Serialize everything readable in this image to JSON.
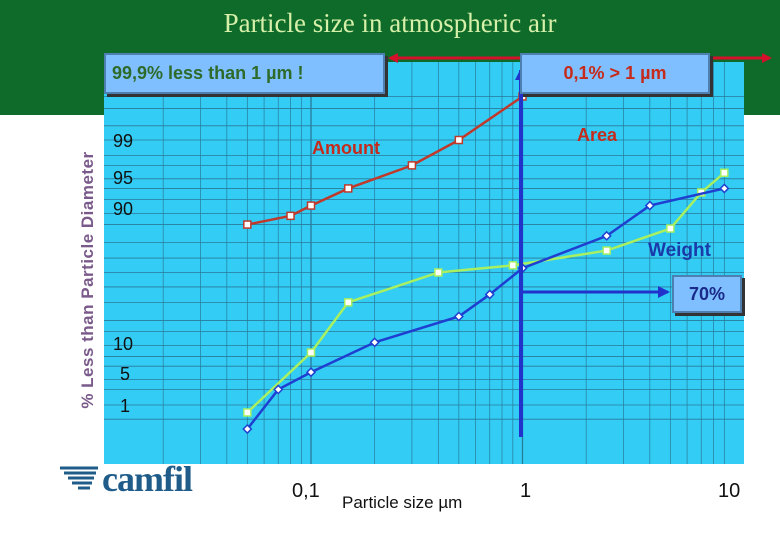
{
  "page": {
    "title": "Particle size in atmospheric air",
    "logo_text": "camfil"
  },
  "callouts": {
    "fine_share": "99,9% less than 1 µm !",
    "coarse_share": "0,1% > 1 µm",
    "weight_mark": "70%"
  },
  "chart_data": {
    "type": "line",
    "xlabel": "Particle size µm",
    "ylabel": "% Less than Particle Diameter",
    "x_scale": "log",
    "xlim": [
      0.03,
      10
    ],
    "x_ticks": [
      "0,1",
      "1",
      "10"
    ],
    "y_ticks": [
      "99",
      "95",
      "90",
      "10",
      "5",
      "1"
    ],
    "grid": true,
    "colors": {
      "plot_bg": "#33ccf5",
      "grid": "#2a7a9a",
      "amount": "#c0392b",
      "area": "#a8f060",
      "weight": "#1f3fd0",
      "divider": "#2233cc",
      "range_arrow": "#d4102a"
    },
    "series": [
      {
        "name": "Amount",
        "color_key": "amount",
        "marker": "square",
        "x": [
          0.05,
          0.08,
          0.1,
          0.15,
          0.3,
          0.5,
          1.0
        ],
        "y": [
          80,
          84,
          88,
          93,
          97,
          99,
          99.9
        ]
      },
      {
        "name": "Area",
        "color_key": "area",
        "marker": "square",
        "x": [
          0.05,
          0.1,
          0.15,
          0.4,
          0.9,
          2.5,
          5,
          7,
          9
        ],
        "y": [
          0.7,
          8,
          30,
          50,
          55,
          65,
          78,
          92,
          96
        ]
      },
      {
        "name": "Weight",
        "color_key": "weight",
        "marker": "diamond",
        "x": [
          0.05,
          0.07,
          0.1,
          0.2,
          0.5,
          0.7,
          1.0,
          2.5,
          4,
          9
        ],
        "y": [
          0.3,
          2,
          4,
          11,
          22,
          35,
          53,
          74,
          88,
          93
        ]
      }
    ]
  }
}
